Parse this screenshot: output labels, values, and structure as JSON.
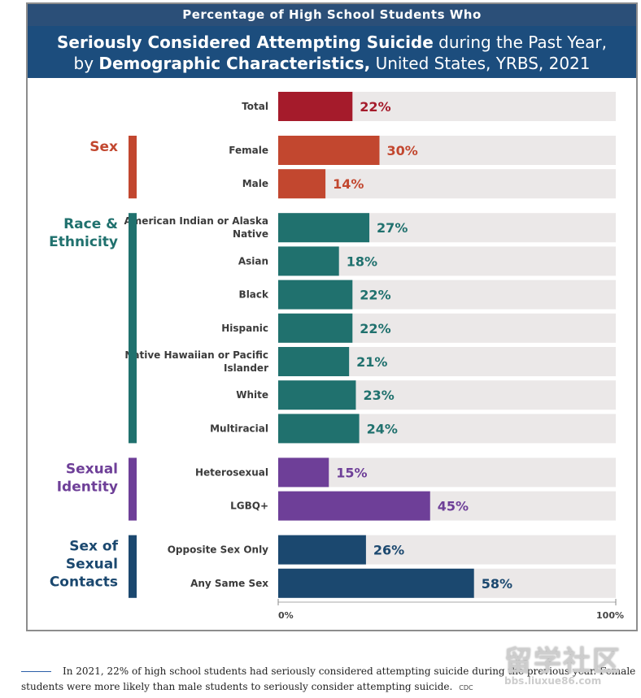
{
  "header": {
    "top": "Percentage of High School Students Who",
    "line1_bold": "Seriously Considered Attempting Suicide",
    "line1_rest": "during the Past Year,",
    "line2_pre": "by",
    "line2_bold": "Demographic Characteristics,",
    "line2_rest": "United States, YRBS, 2021"
  },
  "chart_data": {
    "type": "bar",
    "orientation": "horizontal",
    "xlim": [
      0,
      100
    ],
    "tick_labels": [
      "0%",
      "100%"
    ],
    "groups": [
      {
        "name": "",
        "color": "#a51b2b",
        "items": [
          {
            "label": "Total",
            "value": 22
          }
        ]
      },
      {
        "name": "Sex",
        "color": "#c2472f",
        "items": [
          {
            "label": "Female",
            "value": 30
          },
          {
            "label": "Male",
            "value": 14
          }
        ]
      },
      {
        "name": "Race & Ethnicity",
        "color": "#20716e",
        "items": [
          {
            "label": "American Indian or Alaska Native",
            "value": 27
          },
          {
            "label": "Asian",
            "value": 18
          },
          {
            "label": "Black",
            "value": 22
          },
          {
            "label": "Hispanic",
            "value": 22
          },
          {
            "label": "Native Hawaiian or Pacific Islander",
            "value": 21
          },
          {
            "label": "White",
            "value": 23
          },
          {
            "label": "Multiracial",
            "value": 24
          }
        ]
      },
      {
        "name": "Sexual Identity",
        "color": "#6e3f98",
        "items": [
          {
            "label": "Heterosexual",
            "value": 15
          },
          {
            "label": "LGBQ+",
            "value": 45
          }
        ]
      },
      {
        "name": "Sex of Sexual Contacts",
        "color": "#1b486f",
        "items": [
          {
            "label": "Opposite Sex Only",
            "value": 26
          },
          {
            "label": "Any Same Sex",
            "value": 58
          }
        ]
      }
    ]
  },
  "caption": {
    "text": "In 2021, 22% of high school students had seriously considered attempting suicide during the previous year. Female students were more likely than male students to seriously consider attempting suicide.",
    "source": "CDC"
  },
  "watermark": {
    "line1": "留学社区",
    "line2": "bbs.liuxue86.com"
  }
}
